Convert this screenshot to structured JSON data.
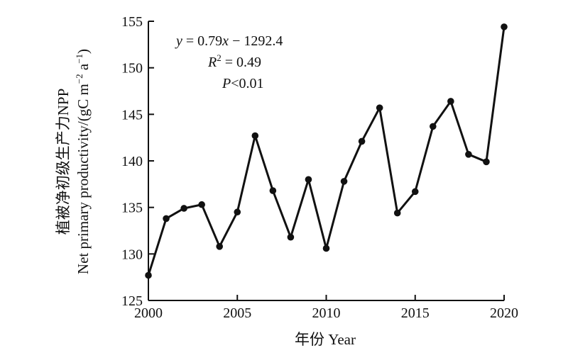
{
  "chart_data": {
    "type": "line",
    "x": [
      2000,
      2001,
      2002,
      2003,
      2004,
      2005,
      2006,
      2007,
      2008,
      2009,
      2010,
      2011,
      2012,
      2013,
      2014,
      2015,
      2016,
      2017,
      2018,
      2019,
      2020
    ],
    "series": [
      {
        "values": [
          127.7,
          133.8,
          134.9,
          135.3,
          130.8,
          134.5,
          142.7,
          136.8,
          131.8,
          138.0,
          130.6,
          137.8,
          142.1,
          145.7,
          134.4,
          136.7,
          143.7,
          146.4,
          140.7,
          139.9,
          154.4
        ]
      }
    ],
    "trend": {
      "slope": 0.79,
      "intercept": -1292.4,
      "x_start": 2000,
      "x_end": 2020
    },
    "annotation": {
      "equation": {
        "y": "y",
        "eq": " = 0.79",
        "x": "x",
        "rest": " − 1292.4"
      },
      "r2": {
        "label": "R",
        "sup": "2",
        "rest": " = 0.49"
      },
      "p": {
        "label": "P",
        "rest": "<0.01"
      }
    },
    "xlabel": "年份 Year",
    "ylabel_line1": "植被净初级生产力NPP",
    "ylabel_line2": {
      "main": "Net primary productivity/(gC m",
      "sup1": "−2",
      "mid": " a",
      "sup2": "−1",
      "end": ")"
    },
    "xlim": [
      2000,
      2020
    ],
    "ylim": [
      125,
      155
    ],
    "xticks": [
      2000,
      2005,
      2010,
      2015,
      2020
    ],
    "yticks": [
      125,
      130,
      135,
      140,
      145,
      150,
      155
    ],
    "grid": false,
    "colors": {
      "line": "#111111",
      "marker": "#111111",
      "trend": "#111111",
      "axis": "#111111"
    }
  }
}
